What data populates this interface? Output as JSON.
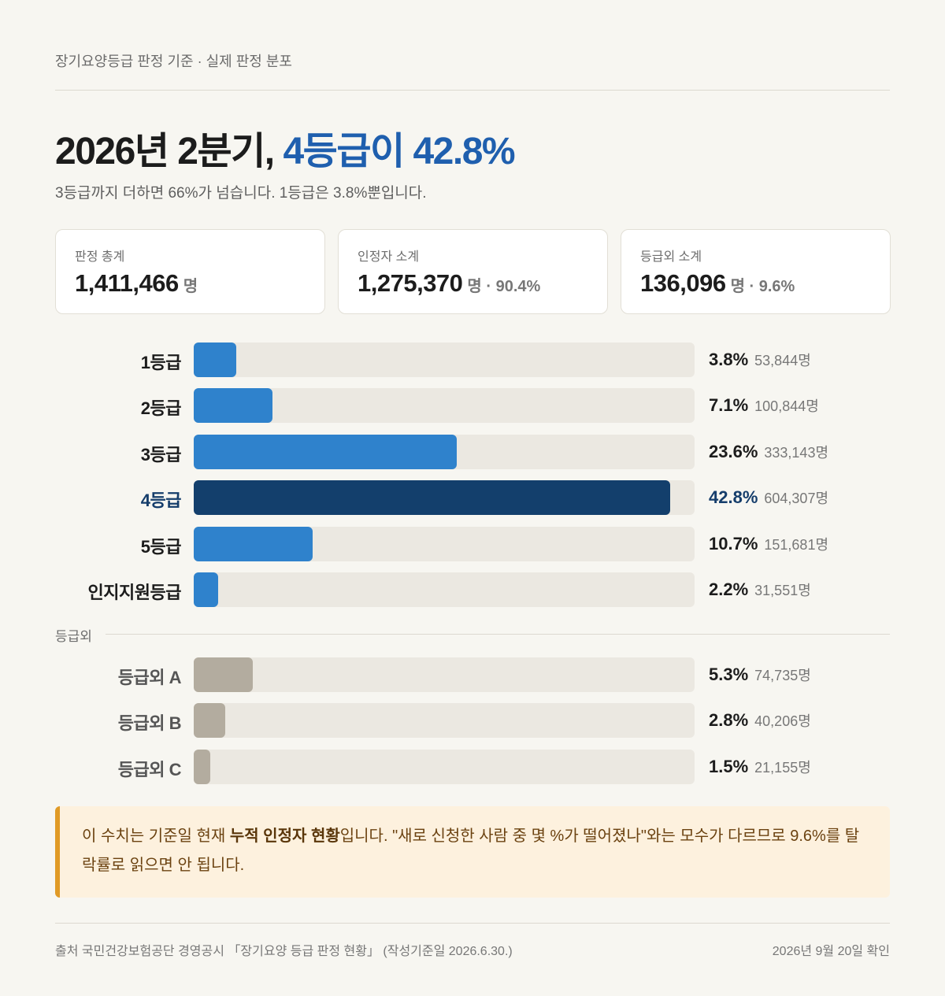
{
  "header": {
    "eyebrow": "장기요양등급 판정 기준 · 실제 판정 분포",
    "title_prefix": "2026년 2분기, ",
    "title_highlight": "4등급이 42.8%",
    "subtitle": "3등급까지 더하면 66%가 넘습니다. 1등급은 3.8%뿐입니다."
  },
  "cards": [
    {
      "label": "판정 총계",
      "value": "1,411,466",
      "unit": "명"
    },
    {
      "label": "인정자 소계",
      "value": "1,275,370",
      "unit": "명 · 90.4%"
    },
    {
      "label": "등급외 소계",
      "value": "136,096",
      "unit": "명 · 9.6%"
    }
  ],
  "colors": {
    "bar": "#2f82cc",
    "highlight": "#133f6c",
    "outside": "#b3ac9f",
    "track": "#ebe8e1",
    "accent": "#1f5fae"
  },
  "section_outside_label": "등급외",
  "chart_data": {
    "type": "bar",
    "orientation": "horizontal",
    "unit": "%",
    "xlim": [
      0,
      45
    ],
    "categories": [
      "1등급",
      "2등급",
      "3등급",
      "4등급",
      "5등급",
      "인지지원등급",
      "등급외 A",
      "등급외 B",
      "등급외 C"
    ],
    "values": [
      3.8,
      7.1,
      23.6,
      42.8,
      10.7,
      2.2,
      5.3,
      2.8,
      1.5
    ],
    "value_labels": [
      "3.8%",
      "7.1%",
      "23.6%",
      "42.8%",
      "10.7%",
      "2.2%",
      "5.3%",
      "2.8%",
      "1.5%"
    ],
    "counts": [
      "53,844명",
      "100,844명",
      "333,143명",
      "604,307명",
      "151,681명",
      "31,551명",
      "74,735명",
      "40,206명",
      "21,155명"
    ],
    "groups": [
      "인정",
      "인정",
      "인정",
      "인정",
      "인정",
      "인정",
      "등급외",
      "등급외",
      "등급외"
    ],
    "highlight_index": 3
  },
  "note": {
    "pre": "이 수치는 기준일 현재 ",
    "bold": "누적 인정자 현황",
    "post": "입니다. \"새로 신청한 사람 중 몇 %가 떨어졌나\"와는 모수가 다르므로 9.6%를 탈락률로 읽으면 안 됩니다."
  },
  "footer": {
    "source": "출처 국민건강보험공단 경영공시 「장기요양 등급 판정 현황」 (작성기준일 2026.6.30.)",
    "checked": "2026년 9월 20일 확인"
  }
}
